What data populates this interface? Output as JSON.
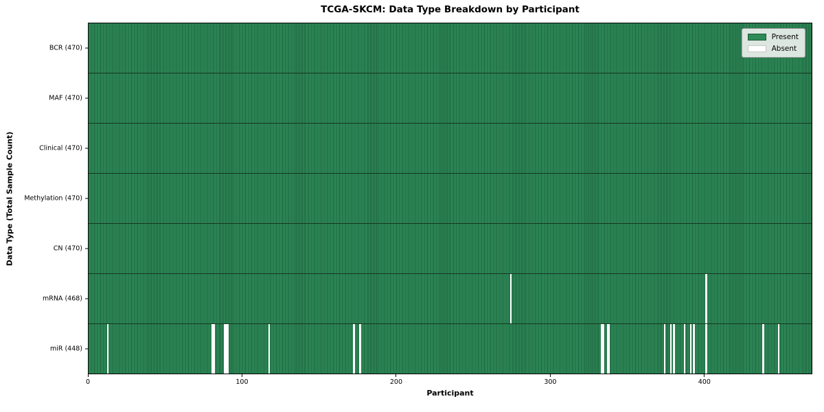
{
  "title": "TCGA-SKCM: Data Type Breakdown by Participant",
  "legend": {
    "present_label": "Present",
    "absent_label": "Absent"
  },
  "colors": {
    "present": "#2e8b57",
    "present_edge": "#1f6340",
    "absent": "#ffffff",
    "row_divider": "#15361f",
    "plot_border": "#000000",
    "legend_background": "#edf0ed"
  },
  "chart_data": {
    "type": "heatmap",
    "title": "TCGA-SKCM: Data Type Breakdown by Participant",
    "xlabel": "Participant",
    "ylabel": "Data Type (Total Sample Count)",
    "legend": [
      "Present",
      "Absent"
    ],
    "legend_position": "upper right",
    "grid": false,
    "n_participants": 470,
    "x_range": [
      0,
      470
    ],
    "x_ticks": [
      0,
      100,
      200,
      300,
      400
    ],
    "rows": [
      {
        "label": "BCR (470)",
        "data_type": "BCR",
        "total": 470,
        "absent_participants": []
      },
      {
        "label": "MAF (470)",
        "data_type": "MAF",
        "total": 470,
        "absent_participants": []
      },
      {
        "label": "Clinical (470)",
        "data_type": "Clinical",
        "total": 470,
        "absent_participants": []
      },
      {
        "label": "Methylation (470)",
        "data_type": "Methylation",
        "total": 470,
        "absent_participants": []
      },
      {
        "label": "CN (470)",
        "data_type": "CN",
        "total": 470,
        "absent_participants": []
      },
      {
        "label": "mRNA (468)",
        "data_type": "mRNA",
        "total": 468,
        "absent_participants": [
          274,
          401
        ]
      },
      {
        "label": "miR (448)",
        "data_type": "miR",
        "total": 448,
        "absent_participants": [
          12,
          80,
          81,
          88,
          89,
          90,
          117,
          172,
          176,
          333,
          334,
          337,
          338,
          374,
          378,
          380,
          387,
          391,
          393,
          401,
          438,
          448
        ]
      }
    ]
  }
}
